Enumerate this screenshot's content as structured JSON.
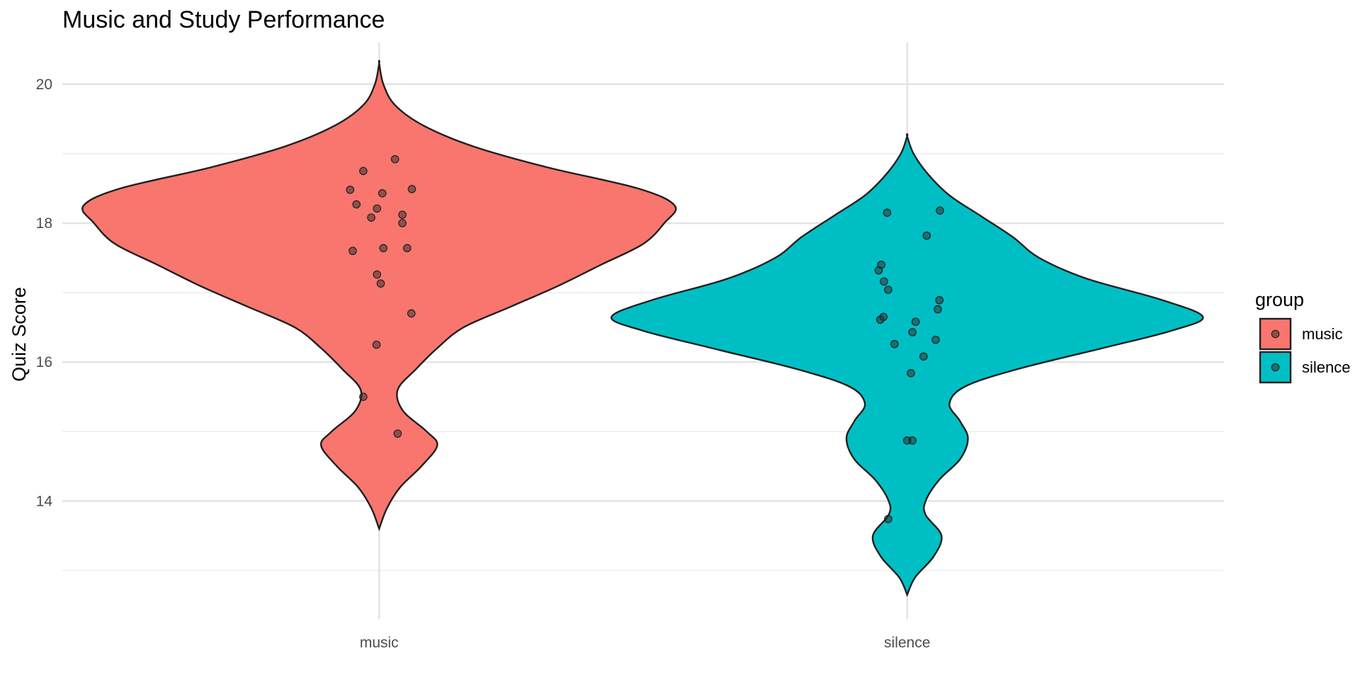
{
  "chart_data": {
    "type": "violin",
    "title": "Music and Study Performance",
    "xlabel": "",
    "ylabel": "Quiz Score",
    "categories": [
      "music",
      "silence"
    ],
    "ylim": [
      12.3,
      20.6
    ],
    "y_ticks": [
      14,
      16,
      18,
      20
    ],
    "grid": true,
    "legend": {
      "title": "group",
      "placement": "right",
      "entries": [
        "music",
        "silence"
      ]
    },
    "colors": {
      "music": "#F8766D",
      "silence": "#00BFC4"
    },
    "series": [
      {
        "name": "music",
        "category": "music",
        "y_range": [
          13.6,
          20.3
        ],
        "max_half_width": 0.56,
        "density_profile": [
          [
            13.6,
            0.0
          ],
          [
            13.9,
            0.015
          ],
          [
            14.2,
            0.04
          ],
          [
            14.5,
            0.08
          ],
          [
            14.8,
            0.11
          ],
          [
            15.0,
            0.09
          ],
          [
            15.3,
            0.045
          ],
          [
            15.6,
            0.035
          ],
          [
            15.9,
            0.07
          ],
          [
            16.2,
            0.11
          ],
          [
            16.5,
            0.16
          ],
          [
            16.8,
            0.25
          ],
          [
            17.1,
            0.34
          ],
          [
            17.4,
            0.42
          ],
          [
            17.7,
            0.5
          ],
          [
            18.0,
            0.54
          ],
          [
            18.25,
            0.56
          ],
          [
            18.5,
            0.49
          ],
          [
            18.8,
            0.32
          ],
          [
            19.1,
            0.18
          ],
          [
            19.4,
            0.085
          ],
          [
            19.7,
            0.03
          ],
          [
            20.0,
            0.008
          ],
          [
            20.3,
            0.0
          ]
        ],
        "points": [
          {
            "x_offset": -0.055,
            "y": 18.48
          },
          {
            "x_offset": -0.043,
            "y": 18.27
          },
          {
            "x_offset": -0.03,
            "y": 18.75
          },
          {
            "x_offset": -0.015,
            "y": 18.08
          },
          {
            "x_offset": -0.004,
            "y": 18.21
          },
          {
            "x_offset": 0.006,
            "y": 18.43
          },
          {
            "x_offset": 0.03,
            "y": 18.92
          },
          {
            "x_offset": 0.044,
            "y": 18.12
          },
          {
            "x_offset": 0.044,
            "y": 18.0
          },
          {
            "x_offset": 0.062,
            "y": 18.49
          },
          {
            "x_offset": -0.05,
            "y": 17.6
          },
          {
            "x_offset": 0.008,
            "y": 17.64
          },
          {
            "x_offset": 0.053,
            "y": 17.64
          },
          {
            "x_offset": -0.004,
            "y": 17.26
          },
          {
            "x_offset": 0.003,
            "y": 17.13
          },
          {
            "x_offset": 0.061,
            "y": 16.7
          },
          {
            "x_offset": -0.005,
            "y": 16.25
          },
          {
            "x_offset": -0.03,
            "y": 15.5
          },
          {
            "x_offset": 0.035,
            "y": 14.97
          }
        ]
      },
      {
        "name": "silence",
        "category": "silence",
        "y_range": [
          12.65,
          19.25
        ],
        "max_half_width": 0.56,
        "density_profile": [
          [
            12.65,
            0.0
          ],
          [
            12.9,
            0.015
          ],
          [
            13.2,
            0.05
          ],
          [
            13.5,
            0.065
          ],
          [
            13.8,
            0.035
          ],
          [
            14.0,
            0.035
          ],
          [
            14.3,
            0.06
          ],
          [
            14.6,
            0.1
          ],
          [
            14.9,
            0.115
          ],
          [
            15.15,
            0.1
          ],
          [
            15.4,
            0.08
          ],
          [
            15.65,
            0.11
          ],
          [
            15.9,
            0.21
          ],
          [
            16.2,
            0.37
          ],
          [
            16.45,
            0.5
          ],
          [
            16.65,
            0.56
          ],
          [
            16.9,
            0.48
          ],
          [
            17.2,
            0.34
          ],
          [
            17.5,
            0.25
          ],
          [
            17.8,
            0.2
          ],
          [
            18.1,
            0.14
          ],
          [
            18.4,
            0.08
          ],
          [
            18.7,
            0.04
          ],
          [
            19.0,
            0.012
          ],
          [
            19.25,
            0.0
          ]
        ],
        "points": [
          {
            "x_offset": -0.038,
            "y": 18.15
          },
          {
            "x_offset": 0.062,
            "y": 18.18
          },
          {
            "x_offset": 0.037,
            "y": 17.82
          },
          {
            "x_offset": -0.054,
            "y": 17.32
          },
          {
            "x_offset": -0.049,
            "y": 17.4
          },
          {
            "x_offset": -0.044,
            "y": 17.16
          },
          {
            "x_offset": -0.036,
            "y": 17.04
          },
          {
            "x_offset": 0.061,
            "y": 16.89
          },
          {
            "x_offset": 0.058,
            "y": 16.76
          },
          {
            "x_offset": -0.045,
            "y": 16.65
          },
          {
            "x_offset": -0.051,
            "y": 16.61
          },
          {
            "x_offset": 0.016,
            "y": 16.58
          },
          {
            "x_offset": 0.01,
            "y": 16.43
          },
          {
            "x_offset": 0.054,
            "y": 16.32
          },
          {
            "x_offset": -0.024,
            "y": 16.26
          },
          {
            "x_offset": 0.031,
            "y": 16.08
          },
          {
            "x_offset": 0.007,
            "y": 15.84
          },
          {
            "x_offset": 0.0,
            "y": 14.87
          },
          {
            "x_offset": 0.01,
            "y": 14.87
          },
          {
            "x_offset": -0.036,
            "y": 13.74
          }
        ]
      }
    ]
  }
}
